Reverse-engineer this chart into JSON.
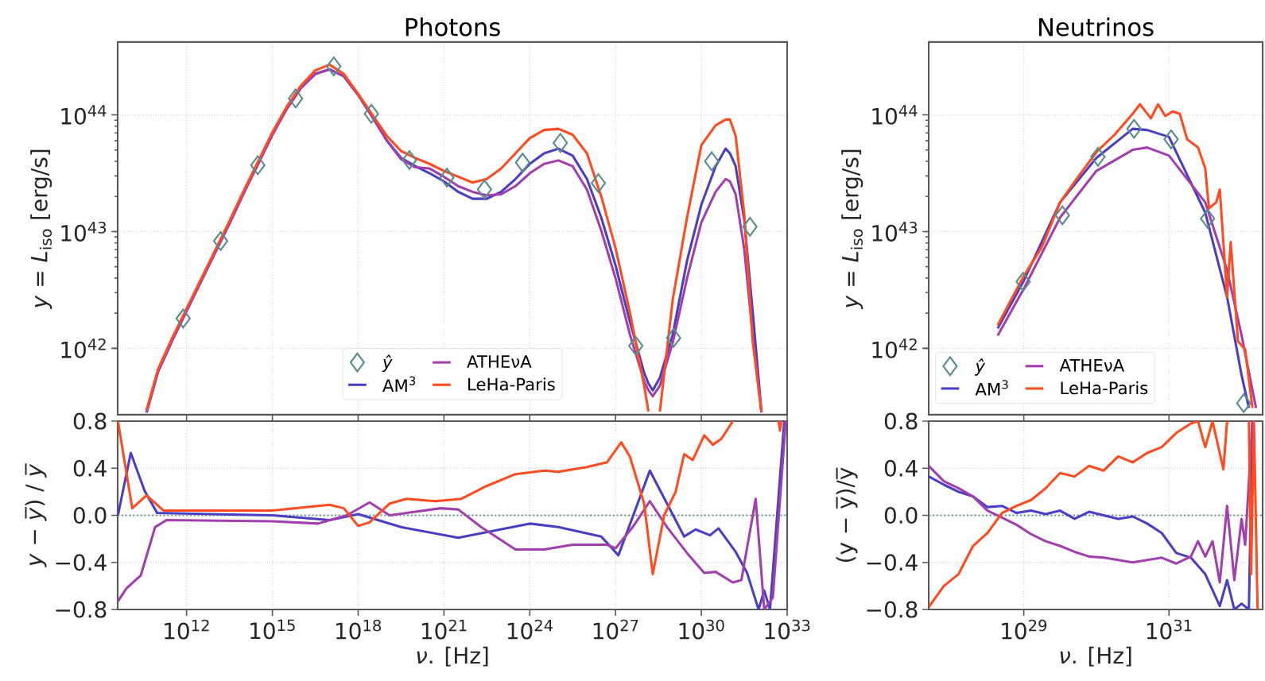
{
  "chart_data": [
    {
      "type": "line",
      "title": "Photons",
      "ylabel": "*y* = *L*$_{iso}$ [erg/s]",
      "log": "xy",
      "grid": true,
      "legend": "bottom",
      "tick_labels": "y",
      "xlim": [
        3900000000.0,
        1e+33
      ],
      "ylim": [
        2.7e+41,
        4.2e+44
      ],
      "xticks": [
        {
          "value": 1000000000000.0,
          "label": null
        },
        {
          "value": 1000000000000000.0,
          "label": null
        },
        {
          "value": 1e+18,
          "label": null
        },
        {
          "value": 1e+21,
          "label": null
        },
        {
          "value": 1e+24,
          "label": null
        },
        {
          "value": 1e+27,
          "label": null
        },
        {
          "value": 1e+30,
          "label": null
        },
        {
          "value": 1e+33,
          "label": null
        }
      ],
      "yticks": [
        {
          "value": 1e+42,
          "label": "10$^{42}$"
        },
        {
          "value": 1e+43,
          "label": "10$^{43}$"
        },
        {
          "value": 1e+44,
          "label": "10$^{44}$"
        }
      ],
      "x": [
        39800000000.0,
        100000000000.0,
        316000000000.0,
        1000000000000.0,
        3160000000000.0,
        10000000000000.0,
        31600000000000.0,
        100000000000000.0,
        316000000000000.0,
        1000000000000000.0,
        3160000000000000.0,
        1e+16,
        3.16e+16,
        1e+17,
        3.16e+17,
        1e+18,
        3.16e+18,
        1e+19,
        3.16e+19,
        1e+20,
        3.16e+20,
        1e+21,
        3.16e+21,
        1e+22,
        3.16e+22,
        1e+23,
        3.16e+23,
        1e+24,
        3.16e+24,
        1e+25,
        3.16e+25,
        1e+26,
        3.16e+26,
        1e+27,
        3.16e+27,
        1e+28,
        1.41e+28,
        2e+28,
        3.55e+28,
        1e+29,
        3.16e+29,
        1e+30,
        3.16e+30,
        7.08e+30,
        1e+31,
        1.58e+31,
        3.16e+31,
        6.31e+31,
        1.26e+32
      ],
      "series": [
        {
          "name": "*ŷ*",
          "type": "scatter",
          "marker": "diamond",
          "color": "#5a8c8c",
          "x": [
            760000000000.0,
            15500000000000.0,
            310000000000000.0,
            6500000000000000.0,
            1.4e+17,
            2.9e+18,
            6.2e+19,
            1.26e+21,
            2.6e+22,
            5.6e+23,
            1.17e+25,
            2.5e+26,
            5.1e+27,
            1.07e+29,
            2.3e+30,
            5e+31
          ],
          "values": [
            1.8e+42,
            8.3e+42,
            3.7e+43,
            1.38e+44,
            2.6e+44,
            1.02e+44,
            4.1e+43,
            2.9e+43,
            2.3e+43,
            3.9e+43,
            5.75e+43,
            2.6e+43,
            1.05e+42,
            1.23e+42,
            4e+43,
            1.1e+43
          ]
        },
        {
          "name": "AM$^{3}$",
          "color": "#4a3ec4",
          "values": [
            2.82e+41,
            6.31e+41,
            1.17e+42,
            2.09e+42,
            3.72e+42,
            6.61e+42,
            1.17e+43,
            2.14e+43,
            3.8e+43,
            6.76e+43,
            1.12e+44,
            1.7e+44,
            2.24e+44,
            2.45e+44,
            2.14e+44,
            1.48e+44,
            9.55e+43,
            6.03e+43,
            4.27e+43,
            3.63e+43,
            3.16e+43,
            2.69e+43,
            2.19e+43,
            1.91e+43,
            1.91e+43,
            2.19e+43,
            2.82e+43,
            3.8e+43,
            4.68e+43,
            5.13e+43,
            4.47e+43,
            2.82e+43,
            1.32e+43,
            5.13e+42,
            1.7e+42,
            6.17e+41,
            5.01e+41,
            4.37e+41,
            5.62e+41,
            1.32e+42,
            5.62e+42,
            1.7e+43,
            3.63e+43,
            5.13e+43,
            4.68e+43,
            3.63e+43,
            1.26e+43,
            2e+42,
            2.88e+41
          ]
        },
        {
          "name": "ATHEνA",
          "color": "#a23fae",
          "values": [
            2.82e+41,
            6.31e+41,
            1.17e+42,
            2.09e+42,
            3.72e+42,
            6.61e+42,
            1.17e+43,
            2.14e+43,
            3.8e+43,
            6.76e+43,
            1.12e+44,
            1.7e+44,
            2.24e+44,
            2.45e+44,
            2.14e+44,
            1.48e+44,
            9.55e+43,
            6.03e+43,
            4.17e+43,
            3.55e+43,
            3.47e+43,
            2.95e+43,
            2.45e+43,
            2.19e+43,
            2.04e+43,
            2.09e+43,
            2.45e+43,
            3.16e+43,
            3.8e+43,
            4.07e+43,
            3.63e+43,
            2.29e+43,
            1.02e+43,
            3.98e+42,
            1.32e+42,
            5.25e+41,
            4.37e+41,
            3.89e+41,
            4.79e+41,
            1.12e+42,
            3.98e+42,
            1.2e+43,
            2.19e+43,
            2.82e+43,
            2.69e+43,
            2.09e+43,
            7.08e+42,
            1.26e+42,
            2.82e+41
          ]
        },
        {
          "name": "LeHa-Paris",
          "color": "#ff4b1f",
          "values": [
            2.95e+41,
            6.61e+41,
            1.23e+42,
            2.19e+42,
            3.89e+42,
            6.92e+42,
            1.23e+43,
            2.24e+43,
            3.98e+43,
            7.08e+43,
            1.17e+44,
            1.78e+44,
            2.4e+44,
            2.69e+44,
            2.24e+44,
            1.51e+44,
            1e+44,
            6.61e+43,
            4.9e+43,
            4.27e+43,
            3.8e+43,
            3.31e+43,
            2.95e+43,
            2.63e+43,
            2.82e+43,
            3.47e+43,
            4.68e+43,
            6.31e+43,
            7.41e+43,
            7.59e+43,
            6.76e+43,
            4.68e+43,
            2e+43,
            7.24e+42,
            2.04e+42,
            4.79e+41,
            2.88e+41,
            null,
            2.88e+41,
            2.63e+42,
            1.32e+43,
            5.5e+43,
            8.13e+43,
            9.12e+43,
            9.12e+43,
            6.61e+43,
            1.41e+43,
            1.12e+42,
            2.88e+41
          ]
        }
      ]
    },
    {
      "type": "line",
      "title": "Neutrinos",
      "ylabel": "*y* = *L*$_{iso}$ [erg/s]",
      "log": "xy",
      "grid": true,
      "legend": "bottom left",
      "tick_labels": "y",
      "xlim": [
        4.9e+27,
        1.95e+32
      ],
      "ylim": [
        2.7e+41,
        4.2e+44
      ],
      "xticks": [
        {
          "value": 1e+29,
          "label": null
        },
        {
          "value": 1e+31,
          "label": null
        }
      ],
      "yticks": [
        {
          "value": 1e+42,
          "label": "10$^{42}$"
        },
        {
          "value": 1e+43,
          "label": "10$^{43}$"
        },
        {
          "value": 1e+44,
          "label": "10$^{44}$"
        }
      ],
      "series": [
        {
          "name": "*ŷ*",
          "type": "scatter",
          "marker": "diamond",
          "color": "#5a8c8c",
          "x": [
            9.8e+28,
            3.4e+29,
            1.05e+30,
            3.3e+30,
            1.07e+31,
            3.4e+31,
            1.07e+32
          ],
          "values": [
            3.72e+42,
            1.38e+43,
            4.37e+43,
            7.59e+43,
            6.17e+43,
            1.29e+43,
            3.39e+41
          ]
        },
        {
          "name": "AM$^{3}$",
          "color": "#4a3ec4",
          "x": [
            4.37e+28,
            1e+29,
            3.16e+29,
            1e+30,
            3.16e+30,
            5.01e+30,
            1e+31,
            3.16e+31,
            6.31e+31,
            1e+32,
            1.26e+32
          ],
          "values": [
            1.48e+42,
            3.8e+42,
            1.78e+43,
            4.27e+43,
            7.59e+43,
            7.41e+43,
            6.46e+43,
            1.45e+43,
            2.75e+42,
            5.89e+41,
            3.09e+41
          ]
        },
        {
          "name": "ATHEνA",
          "color": "#a23fae",
          "x": [
            4.37e+28,
            1e+29,
            3.16e+29,
            1e+30,
            3.16e+30,
            5.01e+30,
            1e+31,
            3.16e+31,
            6.31e+31,
            1e+32,
            1.58e+32
          ],
          "values": [
            1.29e+42,
            3.24e+42,
            1.32e+43,
            3.31e+43,
            5.01e+43,
            5.25e+43,
            4.47e+43,
            1.78e+43,
            4.68e+42,
            1.29e+42,
            3.09e+41
          ]
        },
        {
          "name": "LeHa-Paris",
          "color": "#ff4b1f",
          "x": [
            4.37e+28,
            1e+29,
            1.78e+29,
            3.16e+29,
            5.62e+29,
            1e+30,
            1.78e+30,
            3.16e+30,
            3.98e+30,
            5.62e+30,
            7.08e+30,
            8.91e+30,
            1.12e+31,
            1.41e+31,
            1.78e+31,
            2.51e+31,
            3.16e+31,
            3.55e+31,
            4.47e+31,
            5.01e+31,
            6.31e+31,
            7.08e+31,
            8.91e+31,
            1.12e+32,
            1.41e+32
          ],
          "values": [
            1.58e+42,
            4.17e+42,
            7.41e+42,
            1.78e+43,
            2.95e+43,
            4.79e+43,
            6.76e+43,
            1.02e+44,
            1.23e+44,
            9.33e+43,
            1.23e+44,
            9.77e+43,
            1.07e+44,
            1.02e+44,
            6.17e+43,
            5.25e+43,
            3.47e+43,
            1.58e+43,
            1.78e+43,
            2.29e+43,
            2.75e+42,
            8.13e+42,
            1.15e+42,
            9.77e+41,
            3.09e+41
          ]
        }
      ]
    },
    {
      "type": "line",
      "xlabel": "*ν*. [Hz]",
      "ylabel": "*y* − *y̅*) / *y̅*",
      "log": "x",
      "grid": true,
      "xlim": [
        3900000000.0,
        1e+33
      ],
      "ylim": [
        -0.8,
        0.8
      ],
      "xticks": [
        {
          "value": 1000000000000.0,
          "label": "10$^{12}$"
        },
        {
          "value": 1000000000000000.0,
          "label": "10$^{15}$"
        },
        {
          "value": 1e+18,
          "label": "10$^{18}$"
        },
        {
          "value": 1e+21,
          "label": "10$^{21}$"
        },
        {
          "value": 1e+24,
          "label": "10$^{24}$"
        },
        {
          "value": 1e+27,
          "label": "10$^{27}$"
        },
        {
          "value": 1e+30,
          "label": "10$^{30}$"
        },
        {
          "value": 1e+33,
          "label": "10$^{33}$"
        }
      ],
      "yticks": [
        {
          "value": -0.8,
          "label": "−0.8"
        },
        {
          "value": -0.4,
          "label": "−0.4"
        },
        {
          "value": 0,
          "label": "0.0"
        },
        {
          "value": 0.4,
          "label": "0.4"
        },
        {
          "value": 0.8,
          "label": "0.8"
        }
      ],
      "ref_lines": [
        {
          "axis": "y",
          "value": 0,
          "color": "#6a9a8a",
          "line_style": "dotted"
        }
      ],
      "series": [
        {
          "color": "#4a3ec4",
          "x": [
            3980000000.0,
            11200000000.0,
            33900000000.0,
            93300000000.0,
            1000000000000000.0,
            1e+17,
            1e+18,
            3.16e+19,
            3.16e+21,
            1e+24,
            1e+25,
            3.16e+26,
            1.26e+27,
            1.58e+28,
            2.51e+29,
            6.31e+29,
            2e+30,
            3.98e+30,
            1.58e+31,
            3.98e+31,
            1e+32,
            1.58e+32,
            2.51e+32,
            7.94e+32
          ],
          "values": [
            0.0,
            0.53,
            0.21,
            0.02,
            0.0,
            -0.04,
            0.01,
            -0.1,
            -0.19,
            -0.07,
            -0.1,
            -0.18,
            -0.34,
            0.38,
            -0.18,
            -0.12,
            -0.17,
            -0.11,
            -0.31,
            -0.49,
            -0.8,
            -0.64,
            -0.8,
            0.8
          ]
        },
        {
          "color": "#a23fae",
          "x": [
            3980000000.0,
            7940000000.0,
            25100000000.0,
            79400000000.0,
            200000000000.0,
            1000000000000000.0,
            3.98e+16,
            3.98e+17,
            2.51e+18,
            1.26e+19,
            7.59e+20,
            3.16e+21,
            2e+22,
            3.16e+23,
            3.16e+24,
            3.16e+25,
            5.01e+26,
            1e+27,
            3.98e+27,
            1.58e+28,
            6.31e+28,
            3.16e+29,
            1.26e+30,
            3.16e+30,
            1.26e+31,
            2.51e+31,
            7.94e+31,
            1.58e+32,
            3.16e+32,
            8.91e+32
          ],
          "values": [
            -0.73,
            -0.62,
            -0.51,
            -0.1,
            -0.04,
            -0.05,
            -0.07,
            0.0,
            0.11,
            0.0,
            0.06,
            0.05,
            -0.1,
            -0.29,
            -0.29,
            -0.25,
            -0.25,
            -0.28,
            -0.1,
            0.12,
            -0.1,
            -0.32,
            -0.49,
            -0.48,
            -0.57,
            -0.55,
            0.14,
            -0.8,
            -0.7,
            0.8
          ]
        },
        {
          "color": "#ff4b1f",
          "x": [
            3980000000.0,
            12600000000.0,
            39800000000.0,
            158000000000.0,
            1000000000000000.0,
            1e+17,
            3.16e+17,
            1e+18,
            2.51e+18,
            1.26e+19,
            5.01e+19,
            5.01e+20,
            3.98e+21,
            3.16e+22,
            3.16e+23,
            3.16e+24,
            1e+25,
            1e+26,
            5.01e+26,
            1.58e+27,
            3.16e+27,
            1e+28,
            2e+28,
            5.01e+28,
            1.26e+29,
            2.51e+29,
            5.01e+29,
            1.26e+30,
            2.51e+30,
            5.01e+30,
            1.26e+31,
            1e+32,
            5.01e+32,
            5.62e+32,
            6.31e+32
          ],
          "values": [
            0.8,
            0.06,
            0.17,
            0.04,
            0.04,
            0.09,
            0.06,
            -0.09,
            -0.06,
            0.1,
            0.14,
            0.12,
            0.14,
            0.25,
            0.35,
            0.38,
            0.37,
            0.41,
            0.45,
            0.62,
            0.5,
            0.1,
            -0.5,
            0.0,
            0.2,
            0.52,
            0.47,
            0.68,
            0.6,
            0.65,
            0.8,
            null,
            0.8,
            0.72,
            0.8
          ]
        }
      ]
    },
    {
      "type": "line",
      "xlabel": "*ν*. [Hz]",
      "ylabel": "(y − y̅)/y̅",
      "log": "x",
      "grid": true,
      "xlim": [
        4.9e+27,
        1.95e+32
      ],
      "ylim": [
        -0.8,
        0.8
      ],
      "xticks": [
        {
          "value": 1e+29,
          "label": "10$^{29}$"
        },
        {
          "value": 1e+31,
          "label": "10$^{31}$"
        }
      ],
      "yticks": [
        {
          "value": -0.8,
          "label": "−0.8"
        },
        {
          "value": -0.4,
          "label": "−0.4"
        },
        {
          "value": 0,
          "label": "0.0"
        },
        {
          "value": 0.4,
          "label": "0.4"
        },
        {
          "value": 0.8,
          "label": "0.8"
        }
      ],
      "ref_lines": [
        {
          "axis": "y",
          "value": 0,
          "color": "#6a9a8a",
          "line_style": "dotted"
        }
      ],
      "series": [
        {
          "color": "#4a3ec4",
          "x": [
            4.9e+27,
            7.94e+27,
            1.26e+28,
            2e+28,
            3.16e+28,
            5.01e+28,
            7.94e+28,
            1.26e+29,
            2e+29,
            3.16e+29,
            5.01e+29,
            7.94e+29,
            1.26e+30,
            2e+30,
            3.16e+30,
            5.01e+30,
            7.94e+30,
            1.26e+31,
            2e+31,
            3.16e+31,
            5.01e+31,
            6.31e+31,
            7.94e+31,
            1e+32,
            1.26e+32,
            1.41e+32
          ],
          "values": [
            0.33,
            0.26,
            0.2,
            0.16,
            0.07,
            0.08,
            0.02,
            0.04,
            0.01,
            0.04,
            -0.03,
            0.03,
            0,
            -0.03,
            -0.01,
            -0.07,
            -0.15,
            -0.32,
            -0.36,
            -0.5,
            -0.77,
            -0.55,
            -0.8,
            -0.75,
            -0.8,
            0.8
          ]
        },
        {
          "color": "#a23fae",
          "x": [
            4.9e+27,
            7.94e+27,
            1.26e+28,
            2e+28,
            3.16e+28,
            5.01e+28,
            7.94e+28,
            1.26e+29,
            2e+29,
            3.16e+29,
            5.01e+29,
            7.94e+29,
            1.26e+30,
            2e+30,
            3.16e+30,
            5.01e+30,
            7.94e+30,
            1.26e+31,
            2e+31,
            2.51e+31,
            3.16e+31,
            3.98e+31,
            5.01e+31,
            6.31e+31,
            7.94e+31,
            1e+32,
            1.12e+32,
            1.41e+32
          ],
          "values": [
            0.42,
            0.29,
            0.23,
            0.16,
            0.04,
            -0.02,
            -0.08,
            -0.16,
            -0.22,
            -0.26,
            -0.31,
            -0.35,
            -0.36,
            -0.38,
            -0.4,
            -0.38,
            -0.36,
            -0.41,
            -0.35,
            -0.22,
            -0.35,
            -0.22,
            -0.57,
            0.08,
            -0.55,
            -0.03,
            -0.25,
            0.8
          ]
        },
        {
          "color": "#ff4b1f",
          "x": [
            4.9e+27,
            7.94e+27,
            1.26e+28,
            2e+28,
            3.16e+28,
            5.01e+28,
            7.94e+28,
            1.26e+29,
            2e+29,
            3.16e+29,
            5.01e+29,
            7.94e+29,
            1.26e+30,
            2e+30,
            3.16e+30,
            5.01e+30,
            7.94e+30,
            1.26e+31,
            2e+31,
            2.51e+31,
            3.16e+31,
            3.98e+31,
            5.62e+31,
            6.31e+31,
            1e+32,
            1.26e+32,
            1.35e+32,
            1.48e+32,
            1.66e+32
          ],
          "values": [
            -0.78,
            -0.6,
            -0.5,
            -0.26,
            -0.15,
            0.02,
            0.08,
            0.13,
            0.23,
            0.36,
            0.33,
            0.42,
            0.38,
            0.5,
            0.45,
            0.53,
            0.58,
            0.7,
            0.78,
            0.8,
            0.58,
            0.8,
            0.39,
            0.8,
            null,
            0.8,
            -0.5,
            0.8,
            -0.8
          ]
        }
      ]
    }
  ]
}
